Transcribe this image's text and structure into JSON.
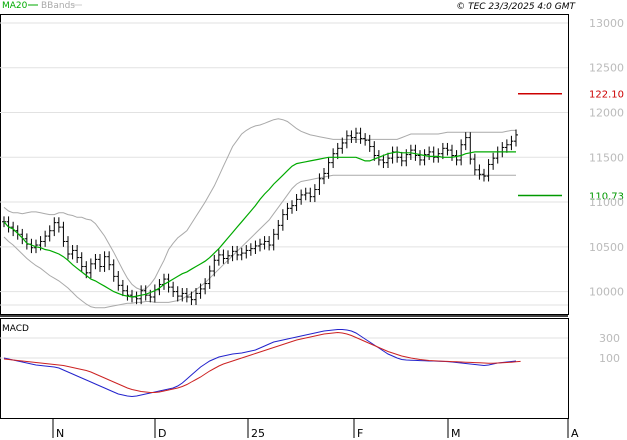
{
  "header": {
    "legend_ma": "MA20",
    "legend_bb": "BBands",
    "copyright": "© TEC 23/3/2025 4:0 GMT"
  },
  "colors": {
    "ma": "#00aa00",
    "bbands": "#aaaaaa",
    "candles": "#000000",
    "resistance": "#cc0000",
    "support": "#009900",
    "macd": "#2222cc",
    "signal": "#cc2222"
  },
  "chart_data": [
    {
      "type": "line",
      "panel": "price",
      "y_ticks": [
        "13000",
        "12500",
        "12000",
        "11500",
        "11000",
        "10500",
        "10000"
      ],
      "ylim": [
        9750,
        13100
      ],
      "x_labels": [
        "N",
        "D",
        "25",
        "F",
        "M",
        "A"
      ],
      "grid": true,
      "levels": [
        {
          "name": "resistance",
          "label": "122.10",
          "value": 12210
        },
        {
          "name": "support",
          "label": "110.73",
          "value": 11073
        }
      ],
      "series_close": [
        10780,
        10720,
        10680,
        10640,
        10590,
        10530,
        10490,
        10520,
        10560,
        10620,
        10680,
        10770,
        10720,
        10560,
        10420,
        10460,
        10380,
        10280,
        10210,
        10310,
        10360,
        10280,
        10390,
        10300,
        10170,
        10070,
        10010,
        9960,
        9940,
        9920,
        10010,
        9960,
        9940,
        10020,
        10080,
        10140,
        10050,
        10000,
        9950,
        9980,
        9940,
        9910,
        9980,
        10030,
        10090,
        10230,
        10350,
        10410,
        10370,
        10400,
        10450,
        10410,
        10430,
        10460,
        10480,
        10510,
        10530,
        10560,
        10520,
        10640,
        10740,
        10860,
        10930,
        10960,
        11030,
        11080,
        11100,
        11060,
        11140,
        11260,
        11320,
        11440,
        11540,
        11600,
        11660,
        11740,
        11720,
        11770,
        11710,
        11690,
        11620,
        11520,
        11470,
        11440,
        11490,
        11560,
        11500,
        11460,
        11530,
        11580,
        11520,
        11470,
        11530,
        11560,
        11500,
        11540,
        11600,
        11580,
        11520,
        11470,
        11640,
        11720,
        11480,
        11360,
        11310,
        11290,
        11420,
        11490,
        11560,
        11610,
        11640,
        11680,
        11750
      ],
      "series_ma20": [
        10780,
        10720,
        10700,
        10650,
        10600,
        10540,
        10520,
        10500,
        10490,
        10470,
        10460,
        10440,
        10420,
        10390,
        10350,
        10300,
        10260,
        10220,
        10180,
        10140,
        10120,
        10090,
        10060,
        10030,
        10000,
        9980,
        9960,
        9950,
        9940,
        9950,
        9960,
        9970,
        9990,
        10010,
        10040,
        10080,
        10110,
        10140,
        10170,
        10200,
        10220,
        10250,
        10280,
        10310,
        10340,
        10380,
        10430,
        10480,
        10540,
        10600,
        10660,
        10720,
        10780,
        10840,
        10900,
        10960,
        11030,
        11090,
        11140,
        11200,
        11250,
        11300,
        11350,
        11400,
        11430,
        11440,
        11450,
        11460,
        11470,
        11480,
        11490,
        11500,
        11500,
        11500,
        11500,
        11500,
        11500,
        11500,
        11480,
        11460,
        11460,
        11480,
        11500,
        11520,
        11540,
        11550,
        11560,
        11550,
        11550,
        11550,
        11540,
        11530,
        11520,
        11510,
        11510,
        11510,
        11500,
        11500,
        11500,
        11510,
        11520,
        11540,
        11550,
        11560,
        11560,
        11560,
        11560,
        11560,
        11560,
        11560,
        11560,
        11560,
        11560
      ],
      "series_upper": [
        10940,
        10900,
        10880,
        10880,
        10870,
        10880,
        10890,
        10890,
        10880,
        10870,
        10860,
        10860,
        10880,
        10880,
        10860,
        10850,
        10830,
        10830,
        10810,
        10800,
        10760,
        10690,
        10620,
        10530,
        10440,
        10340,
        10240,
        10150,
        10080,
        10040,
        10020,
        10030,
        10080,
        10150,
        10250,
        10350,
        10470,
        10540,
        10600,
        10640,
        10680,
        10760,
        10840,
        10920,
        11000,
        11090,
        11180,
        11290,
        11400,
        11510,
        11620,
        11690,
        11760,
        11800,
        11830,
        11850,
        11860,
        11880,
        11900,
        11920,
        11930,
        11920,
        11900,
        11860,
        11820,
        11790,
        11770,
        11750,
        11740,
        11730,
        11720,
        11710,
        11700,
        11700,
        11700,
        11700,
        11700,
        11700,
        11700,
        11700,
        11700,
        11700,
        11700,
        11700,
        11700,
        11700,
        11700,
        11720,
        11740,
        11760,
        11760,
        11760,
        11760,
        11760,
        11760,
        11760,
        11770,
        11780,
        11780,
        11780,
        11780,
        11780,
        11780,
        11780,
        11780,
        11780,
        11780,
        11780,
        11780,
        11780,
        11790,
        11800,
        11800
      ],
      "series_lower": [
        10610,
        10560,
        10520,
        10470,
        10420,
        10370,
        10330,
        10290,
        10260,
        10220,
        10180,
        10150,
        10120,
        10080,
        10040,
        9990,
        9940,
        9900,
        9860,
        9830,
        9820,
        9820,
        9820,
        9830,
        9840,
        9850,
        9860,
        9870,
        9870,
        9880,
        9880,
        9890,
        9890,
        9880,
        9880,
        9880,
        9880,
        9890,
        9900,
        9920,
        9950,
        9980,
        10020,
        10060,
        10100,
        10150,
        10200,
        10250,
        10300,
        10350,
        10400,
        10450,
        10500,
        10550,
        10600,
        10650,
        10700,
        10750,
        10800,
        10870,
        10940,
        11010,
        11080,
        11150,
        11200,
        11230,
        11240,
        11250,
        11260,
        11270,
        11280,
        11290,
        11300,
        11300,
        11300,
        11300,
        11300,
        11300,
        11300,
        11300,
        11300,
        11300,
        11300,
        11300,
        11300,
        11300,
        11300,
        11300,
        11300,
        11300,
        11300,
        11300,
        11300,
        11300,
        11300,
        11300,
        11300,
        11300,
        11300,
        11300,
        11300,
        11300,
        11300,
        11300,
        11300,
        11300,
        11300,
        11300,
        11300,
        11300,
        11300,
        11300,
        11300
      ]
    },
    {
      "type": "line",
      "panel": "macd",
      "title": "MACD",
      "y_ticks": [
        "300",
        "100"
      ],
      "ylim": [
        -500,
        500
      ],
      "series_macd": [
        100,
        90,
        80,
        70,
        60,
        50,
        40,
        30,
        25,
        20,
        15,
        10,
        0,
        -20,
        -40,
        -60,
        -80,
        -100,
        -120,
        -140,
        -160,
        -180,
        -200,
        -220,
        -240,
        -260,
        -270,
        -280,
        -285,
        -280,
        -270,
        -260,
        -250,
        -240,
        -230,
        -220,
        -210,
        -200,
        -180,
        -150,
        -110,
        -70,
        -30,
        10,
        40,
        70,
        90,
        110,
        120,
        130,
        140,
        145,
        150,
        160,
        170,
        180,
        200,
        220,
        240,
        260,
        270,
        280,
        290,
        300,
        310,
        320,
        330,
        340,
        350,
        360,
        370,
        375,
        380,
        385,
        385,
        380,
        370,
        350,
        320,
        290,
        260,
        230,
        200,
        170,
        140,
        120,
        100,
        85,
        80,
        78,
        76,
        74,
        72,
        70,
        70,
        68,
        66,
        64,
        60,
        55,
        50,
        45,
        40,
        35,
        30,
        25,
        30,
        40,
        50,
        55,
        60,
        65,
        70
      ],
      "series_signal": [
        90,
        85,
        80,
        75,
        70,
        65,
        60,
        55,
        50,
        45,
        40,
        35,
        30,
        25,
        15,
        5,
        -5,
        -15,
        -25,
        -40,
        -60,
        -80,
        -100,
        -120,
        -140,
        -160,
        -180,
        -200,
        -215,
        -225,
        -235,
        -240,
        -245,
        -245,
        -240,
        -230,
        -220,
        -210,
        -200,
        -185,
        -165,
        -140,
        -115,
        -90,
        -60,
        -30,
        -5,
        20,
        40,
        55,
        70,
        85,
        100,
        115,
        130,
        145,
        160,
        175,
        190,
        205,
        220,
        235,
        250,
        265,
        280,
        290,
        300,
        310,
        320,
        330,
        340,
        345,
        350,
        355,
        350,
        340,
        325,
        305,
        285,
        265,
        245,
        225,
        205,
        185,
        165,
        150,
        135,
        120,
        110,
        100,
        92,
        85,
        80,
        75,
        72,
        70,
        68,
        66,
        64,
        62,
        60,
        58,
        56,
        54,
        52,
        50,
        48,
        48,
        50,
        52,
        55,
        58,
        62,
        66
      ]
    }
  ]
}
